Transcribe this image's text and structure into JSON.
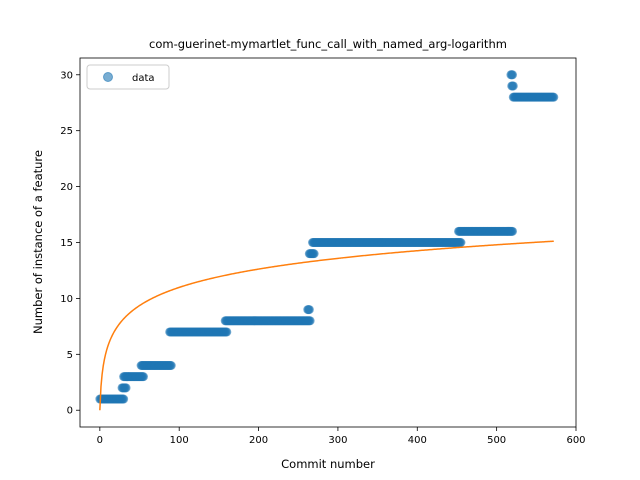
{
  "chart_data": {
    "type": "scatter",
    "title": "com-guerinet-mymartlet_func_call_with_named_arg-logarithm",
    "xlabel": "Commit number",
    "ylabel": "Number of instance of a feature",
    "xlim": [
      -25,
      600
    ],
    "ylim": [
      -1.5,
      31.5
    ],
    "xticks": [
      0,
      100,
      200,
      300,
      400,
      500,
      600
    ],
    "yticks": [
      0,
      5,
      10,
      15,
      20,
      25,
      30
    ],
    "grid": false,
    "legend": {
      "position": "top-left",
      "entries": [
        "data"
      ]
    },
    "colors": {
      "data": "#1f77b4",
      "fit": "#ff7f0e"
    },
    "series": [
      {
        "name": "data",
        "kind": "scatter",
        "segments": [
          {
            "x_start": 0,
            "x_end": 30,
            "y": 1
          },
          {
            "x_start": 28,
            "x_end": 33,
            "y": 2
          },
          {
            "x_start": 30,
            "x_end": 55,
            "y": 3
          },
          {
            "x_start": 52,
            "x_end": 90,
            "y": 4
          },
          {
            "x_start": 88,
            "x_end": 160,
            "y": 7
          },
          {
            "x_start": 158,
            "x_end": 265,
            "y": 8
          },
          {
            "x_start": 262,
            "x_end": 264,
            "y": 9
          },
          {
            "x_start": 264,
            "x_end": 270,
            "y": 14
          },
          {
            "x_start": 268,
            "x_end": 455,
            "y": 15
          },
          {
            "x_start": 452,
            "x_end": 520,
            "y": 16
          },
          {
            "x_start": 518,
            "x_end": 520,
            "y": 30
          },
          {
            "x_start": 519,
            "x_end": 521,
            "y": 29
          },
          {
            "x_start": 521,
            "x_end": 572,
            "y": 28
          }
        ]
      },
      {
        "name": "",
        "kind": "line",
        "model": "logarithmic",
        "a": 2.38,
        "b": 1,
        "x_range": [
          0,
          572
        ]
      }
    ]
  }
}
